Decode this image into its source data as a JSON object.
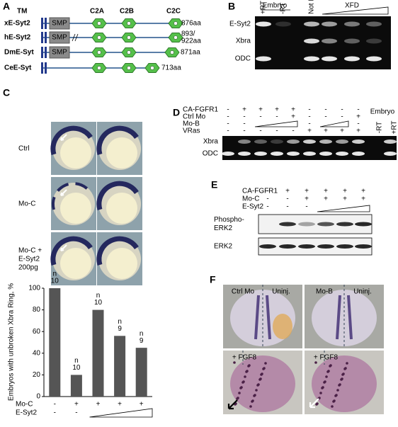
{
  "panel_a": {
    "label": "A",
    "tm": "TM",
    "smp": "SMP",
    "domains": [
      "C2A",
      "C2B",
      "C2C"
    ],
    "proteins": [
      {
        "name": "xE-Syt2",
        "length": [
          "876aa"
        ]
      },
      {
        "name": "hE-Syt2",
        "length": [
          "893/",
          "922aa"
        ]
      },
      {
        "name": "DmE-Syt",
        "length": [
          "871aa"
        ]
      },
      {
        "name": "CeE-Syt",
        "length": [
          "713aa"
        ]
      }
    ]
  },
  "panel_b": {
    "label": "B",
    "embryo": "Embryo",
    "lanes": [
      "+RT",
      "-RT",
      "Not Inj."
    ],
    "xfd": "XFD",
    "rows": [
      "E-Syt2",
      "Xbra",
      "ODC"
    ]
  },
  "panel_c": {
    "label": "C",
    "rows": [
      [
        "Ctrl"
      ],
      [
        "Mo-C"
      ],
      [
        "Mo-C +",
        "E-Syt2",
        "200pg"
      ]
    ]
  },
  "chart_data": {
    "type": "bar",
    "y_label": "Embryos with unbroken Xbra Ring, %",
    "values": [
      100,
      20,
      80,
      56,
      45
    ],
    "color": "#555555",
    "ylim": [
      0,
      100
    ],
    "yticks": [
      0,
      20,
      40,
      60,
      80,
      100
    ],
    "n_labels": [
      [
        "n",
        "10"
      ],
      [
        "n",
        "10"
      ],
      [
        "n",
        "10"
      ],
      [
        "n",
        "9"
      ],
      [
        "n",
        "9"
      ]
    ],
    "conditions": [
      {
        "name": "Mo-C",
        "signs": [
          "-",
          "+",
          "+",
          "+",
          "+"
        ]
      },
      {
        "name": "E-Syt2",
        "signs": [
          "-",
          "-",
          null,
          null,
          null
        ]
      }
    ]
  },
  "panel_d": {
    "label": "D",
    "rows": [
      {
        "name": "CA-FGFR1",
        "signs": [
          "-",
          "+",
          "+",
          "+",
          "+",
          "-",
          "-",
          "-",
          "-"
        ]
      },
      {
        "name": "Ctrl Mo",
        "signs": [
          "-",
          "-",
          "-",
          "-",
          "+",
          "-",
          "-",
          "-",
          "+"
        ]
      },
      {
        "name": "Mo-B",
        "signs": [
          "-",
          "-",
          null,
          null,
          null,
          "-",
          null,
          null,
          "-"
        ]
      },
      {
        "name": "VRas",
        "signs": [
          "-",
          "-",
          "-",
          "-",
          "-",
          "+",
          "+",
          "+",
          "+"
        ]
      }
    ],
    "embryo": "Embryo",
    "embryo_lanes": [
      "-RT",
      "+RT"
    ],
    "bands": [
      "Xbra",
      "ODC"
    ]
  },
  "panel_e": {
    "label": "E",
    "rows": [
      {
        "name": "CA-FGFR1",
        "signs": [
          "-",
          "+",
          "+",
          "+",
          "+",
          "+"
        ]
      },
      {
        "name": "Mo-C",
        "signs": [
          "-",
          "-",
          "+",
          "+",
          "+",
          "+"
        ]
      },
      {
        "name": "E-Syt2",
        "signs": [
          "-",
          "-",
          "-",
          null,
          null,
          null
        ]
      }
    ],
    "blots": [
      [
        "Phospho-",
        "ERK2"
      ],
      [
        "ERK2"
      ]
    ]
  },
  "panel_f": {
    "label": "F",
    "images": [
      {
        "left": "Ctrl Mo",
        "right": "Uninj."
      },
      {
        "left": "Mo-B",
        "right": "Uninj."
      },
      {
        "left": "+ FGF8"
      },
      {
        "left": "+ FGF8"
      }
    ]
  }
}
